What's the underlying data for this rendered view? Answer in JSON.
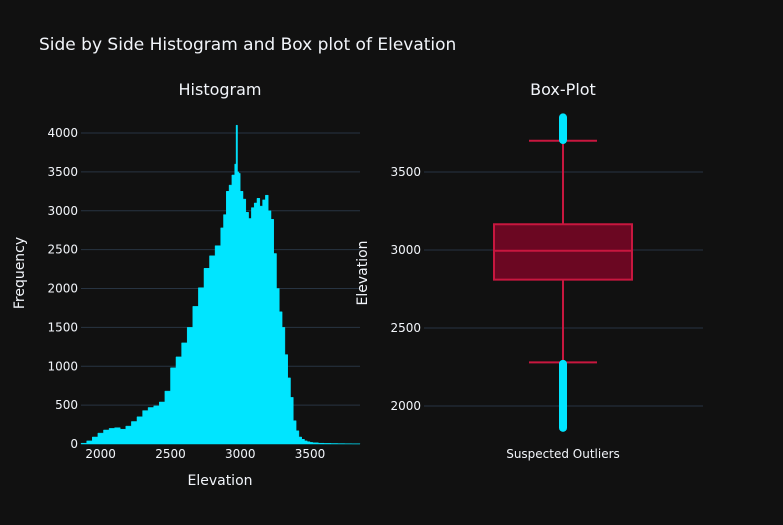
{
  "title": "Side by Side Histogram and Box plot of Elevation",
  "colors": {
    "background": "#111111",
    "grid": "#283442",
    "text": "#f2f5fa",
    "histogram": "#00e5ff",
    "box_fill": "#6b0722",
    "box_line": "#c8173f",
    "outliers": "#00e5ff"
  },
  "chart_data": [
    {
      "type": "histogram",
      "title": "Histogram",
      "xlabel": "Elevation",
      "ylabel": "Frequency",
      "xlim": [
        1859,
        3858
      ],
      "ylim": [
        0,
        4200
      ],
      "x_ticks": [
        2000,
        2500,
        3000,
        3500
      ],
      "y_ticks": [
        0,
        500,
        1000,
        1500,
        2000,
        2500,
        3000,
        3500,
        4000
      ],
      "grid": true,
      "bins": {
        "x": [
          1860,
          1900,
          1940,
          1980,
          2020,
          2060,
          2100,
          2140,
          2180,
          2220,
          2260,
          2300,
          2340,
          2380,
          2420,
          2460,
          2500,
          2540,
          2580,
          2620,
          2660,
          2700,
          2740,
          2780,
          2820,
          2860,
          2880,
          2900,
          2920,
          2940,
          2960,
          2970,
          2980,
          2990,
          3000,
          3020,
          3040,
          3060,
          3080,
          3100,
          3120,
          3140,
          3160,
          3180,
          3200,
          3220,
          3240,
          3260,
          3280,
          3300,
          3320,
          3340,
          3360,
          3380,
          3400,
          3420,
          3440,
          3460,
          3480,
          3500,
          3520,
          3560,
          3600,
          3650,
          3700,
          3750,
          3800,
          3850
        ],
        "y": [
          10,
          40,
          90,
          140,
          180,
          200,
          210,
          190,
          230,
          290,
          350,
          430,
          470,
          490,
          540,
          680,
          980,
          1120,
          1300,
          1500,
          1770,
          2010,
          2260,
          2420,
          2550,
          2780,
          2950,
          3250,
          3330,
          3460,
          3600,
          4100,
          3500,
          3480,
          3250,
          3150,
          2980,
          2900,
          3040,
          3100,
          3160,
          3060,
          3140,
          3200,
          3000,
          2890,
          2450,
          2000,
          1700,
          1500,
          1150,
          850,
          600,
          300,
          170,
          90,
          60,
          40,
          30,
          20,
          15,
          10,
          8,
          6,
          5,
          4,
          3,
          2
        ]
      }
    },
    {
      "type": "box",
      "title": "Box-Plot",
      "ylabel": "Elevation",
      "category": "Suspected Outliers",
      "ylim": [
        1840,
        3900
      ],
      "y_ticks": [
        2000,
        2500,
        3000,
        3500
      ],
      "grid": true,
      "box": {
        "lower_fence": 2280,
        "q1": 2810,
        "median": 2995,
        "q3": 3165,
        "upper_fence": 3700
      },
      "outliers_low": [
        1860,
        2270
      ],
      "outliers_high": [
        3705,
        3850
      ]
    }
  ]
}
